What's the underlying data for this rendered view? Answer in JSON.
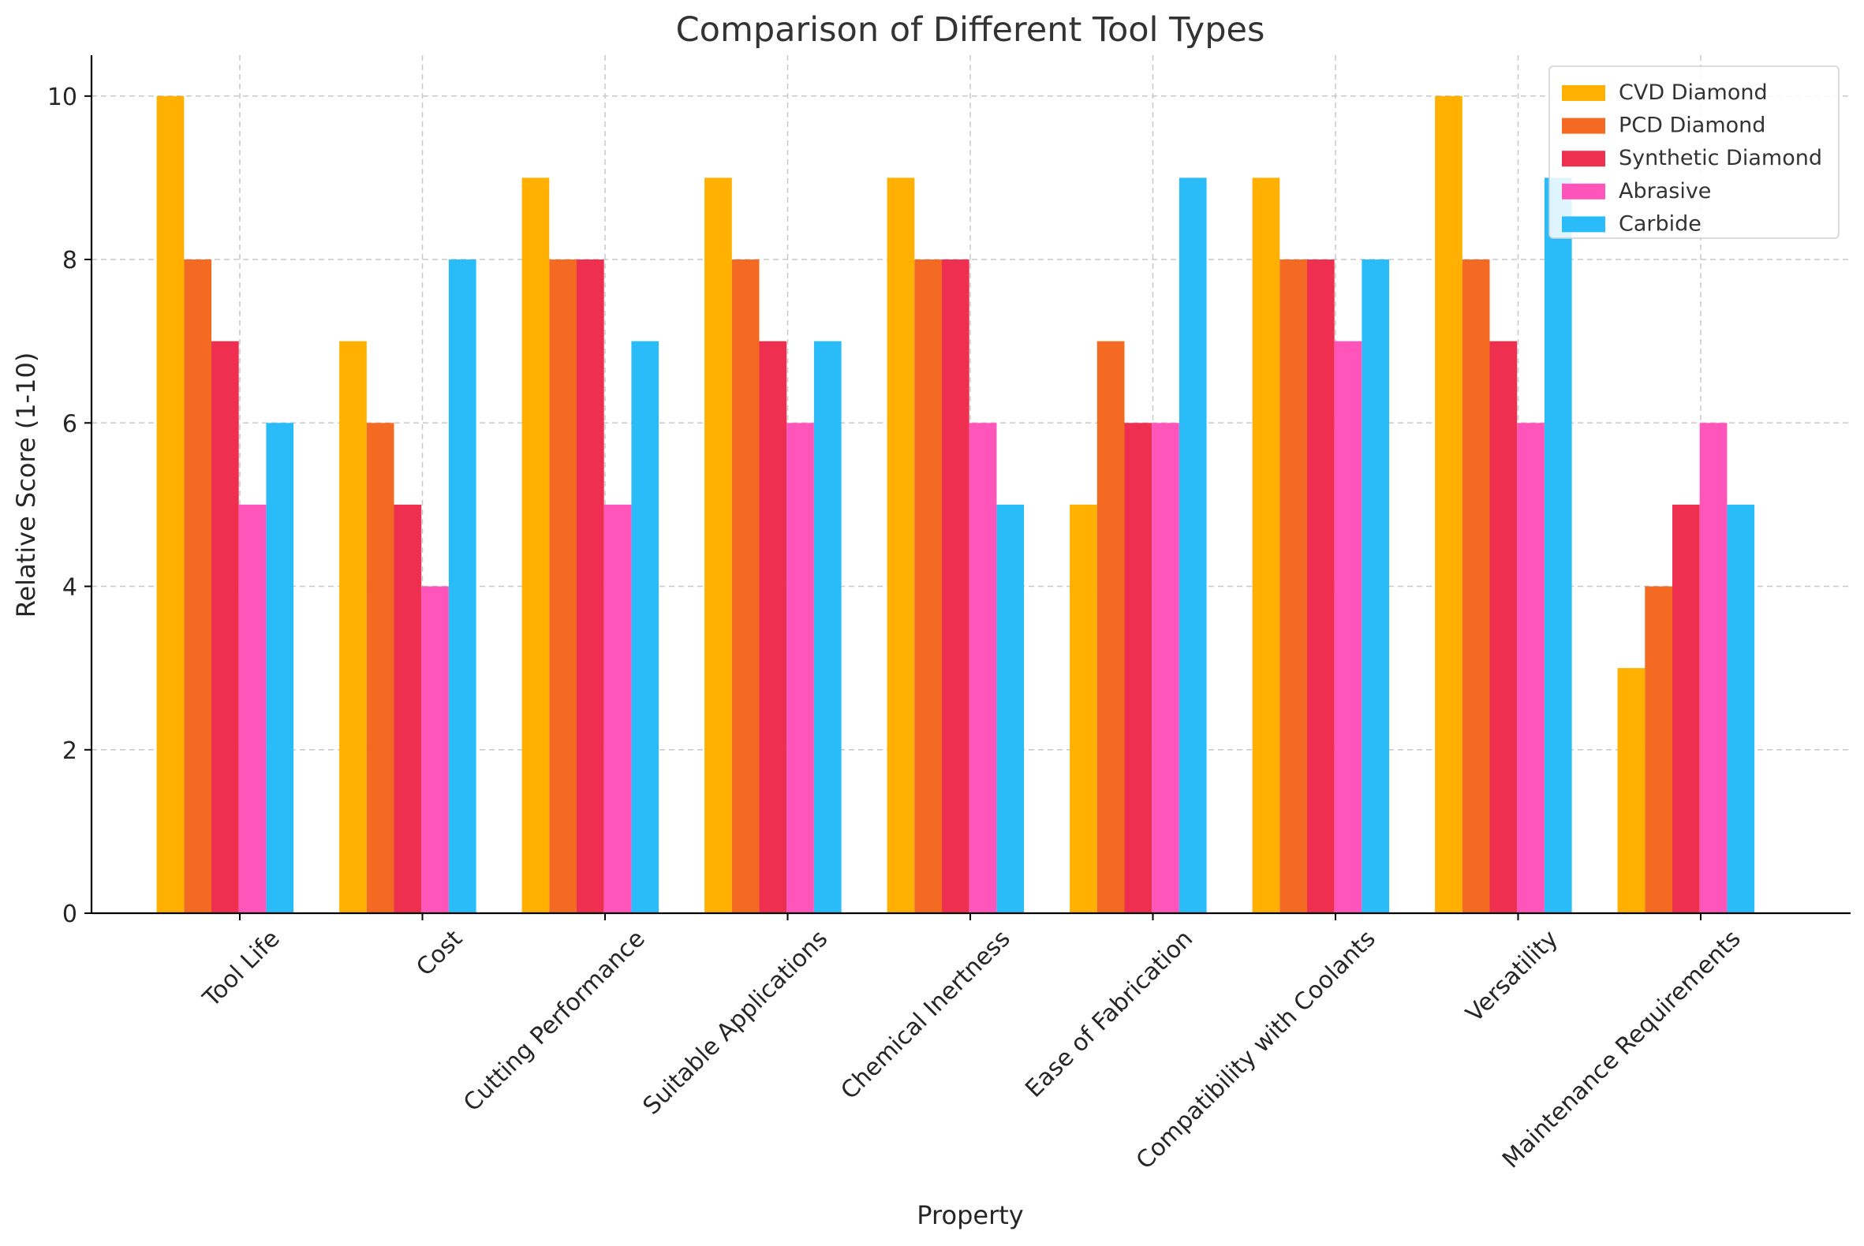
{
  "chart_data": {
    "type": "bar",
    "title": "Comparison of Different Tool Types",
    "xlabel": "Property",
    "ylabel": "Relative Score (1-10)",
    "ylim": [
      0,
      10.5
    ],
    "yticks": [
      0,
      2,
      4,
      6,
      8,
      10
    ],
    "grid": true,
    "legend_position": "top-right",
    "categories": [
      "Tool Life",
      "Cost",
      "Cutting Performance",
      "Suitable Applications",
      "Chemical Inertness",
      "Ease of Fabrication",
      "Compatibility with Coolants",
      "Versatility",
      "Maintenance Requirements"
    ],
    "series": [
      {
        "name": "CVD Diamond",
        "color": "#FFB000",
        "values": [
          10,
          7,
          9,
          9,
          9,
          5,
          9,
          10,
          3
        ]
      },
      {
        "name": "PCD Diamond",
        "color": "#F46A22",
        "values": [
          8,
          6,
          8,
          8,
          8,
          7,
          8,
          8,
          4
        ]
      },
      {
        "name": "Synthetic Diamond",
        "color": "#EE2F4F",
        "values": [
          7,
          5,
          8,
          7,
          8,
          6,
          8,
          7,
          5
        ]
      },
      {
        "name": "Abrasive",
        "color": "#FF55BB",
        "values": [
          5,
          4,
          5,
          6,
          6,
          6,
          7,
          6,
          6
        ]
      },
      {
        "name": "Carbide",
        "color": "#29BCF9",
        "values": [
          6,
          8,
          7,
          7,
          5,
          9,
          8,
          9,
          5
        ]
      }
    ]
  }
}
